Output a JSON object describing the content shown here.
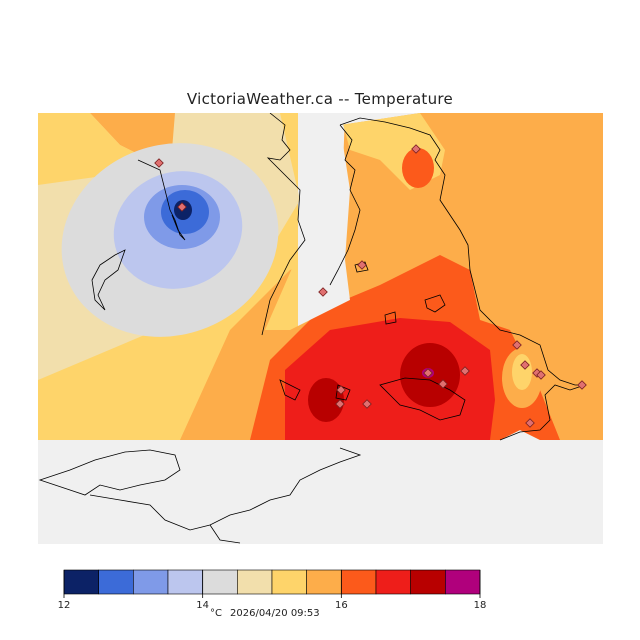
{
  "title": "VictoriaWeather.ca -- Temperature",
  "legend": {
    "colors": [
      "#0c2266",
      "#3c6bd8",
      "#7f9ae8",
      "#bcc6ee",
      "#dcdcdc",
      "#f2dfac",
      "#fed46a",
      "#fdad4a",
      "#fc5a1b",
      "#ee1e1a",
      "#b80000",
      "#b0007c"
    ],
    "ticks": [
      "12",
      "14",
      "16",
      "18"
    ]
  },
  "footer": {
    "unit": "°C",
    "timestamp": "2026/04/20 09:53"
  },
  "colors": {
    "land_background": "#f0f0f0",
    "station_marker": "#e07070",
    "coast": "#000000"
  }
}
